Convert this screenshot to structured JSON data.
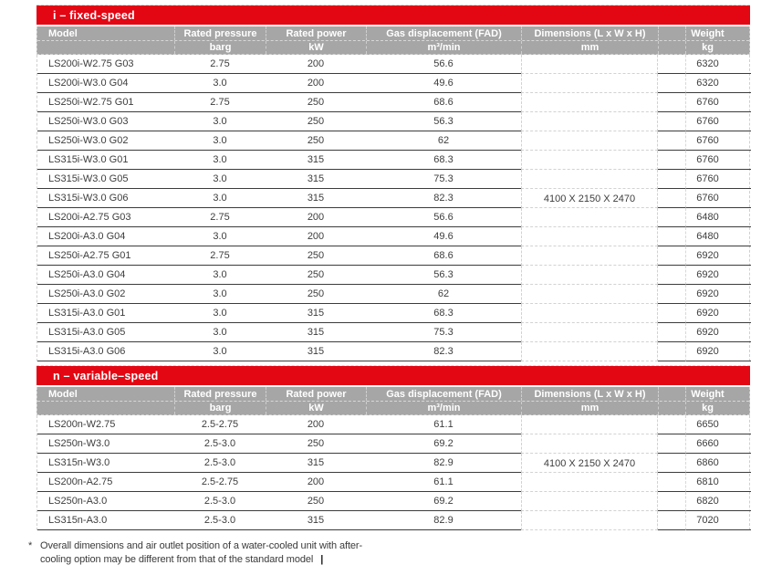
{
  "colors": {
    "accent_red": "#e30613",
    "header_gray": "#a6a6a6",
    "row_line": "#3c3c3c",
    "dashed_line": "#cfcfcf",
    "text": "#3d3d3d"
  },
  "columns": [
    {
      "key": "model",
      "label": "Model",
      "unit": ""
    },
    {
      "key": "pressure",
      "label": "Rated pressure",
      "unit": "barg"
    },
    {
      "key": "power",
      "label": "Rated power",
      "unit": "kW"
    },
    {
      "key": "fad",
      "label": "Gas displacement (FAD)",
      "unit": "m³/min"
    },
    {
      "key": "dims",
      "label": "Dimensions (L x W x H)",
      "unit": "mm"
    },
    {
      "key": "spacer",
      "label": "",
      "unit": ""
    },
    {
      "key": "weight",
      "label": "Weight",
      "unit": "kg"
    }
  ],
  "tables": [
    {
      "title": "i – fixed-speed",
      "dimensions_merged": "4100 X 2150 X 2470",
      "dimensions_row_index": 7,
      "rows": [
        {
          "model": "LS200i-W2.75 G03",
          "pressure": "2.75",
          "power": "200",
          "fad": "56.6",
          "weight": "6320"
        },
        {
          "model": "LS200i-W3.0 G04",
          "pressure": "3.0",
          "power": "200",
          "fad": "49.6",
          "weight": "6320"
        },
        {
          "model": "LS250i-W2.75 G01",
          "pressure": "2.75",
          "power": "250",
          "fad": "68.6",
          "weight": "6760"
        },
        {
          "model": "LS250i-W3.0 G03",
          "pressure": "3.0",
          "power": "250",
          "fad": "56.3",
          "weight": "6760"
        },
        {
          "model": "LS250i-W3.0 G02",
          "pressure": "3.0",
          "power": "250",
          "fad": "62",
          "weight": "6760"
        },
        {
          "model": "LS315i-W3.0 G01",
          "pressure": "3.0",
          "power": "315",
          "fad": "68.3",
          "weight": "6760"
        },
        {
          "model": "LS315i-W3.0 G05",
          "pressure": "3.0",
          "power": "315",
          "fad": "75.3",
          "weight": "6760"
        },
        {
          "model": "LS315i-W3.0 G06",
          "pressure": "3.0",
          "power": "315",
          "fad": "82.3",
          "weight": "6760"
        },
        {
          "model": "LS200i-A2.75 G03",
          "pressure": "2.75",
          "power": "200",
          "fad": "56.6",
          "weight": "6480"
        },
        {
          "model": "LS200i-A3.0 G04",
          "pressure": "3.0",
          "power": "200",
          "fad": "49.6",
          "weight": "6480"
        },
        {
          "model": "LS250i-A2.75 G01",
          "pressure": "2.75",
          "power": "250",
          "fad": "68.6",
          "weight": "6920"
        },
        {
          "model": "LS250i-A3.0 G04",
          "pressure": "3.0",
          "power": "250",
          "fad": "56.3",
          "weight": "6920"
        },
        {
          "model": "LS250i-A3.0 G02",
          "pressure": "3.0",
          "power": "250",
          "fad": "62",
          "weight": "6920"
        },
        {
          "model": "LS315i-A3.0 G01",
          "pressure": "3.0",
          "power": "315",
          "fad": "68.3",
          "weight": "6920"
        },
        {
          "model": "LS315i-A3.0 G05",
          "pressure": "3.0",
          "power": "315",
          "fad": "75.3",
          "weight": "6920"
        },
        {
          "model": "LS315i-A3.0 G06",
          "pressure": "3.0",
          "power": "315",
          "fad": "82.3",
          "weight": "6920"
        }
      ]
    },
    {
      "title": "n – variable–speed",
      "dimensions_merged": "4100 X 2150 X 2470",
      "dimensions_row_index": 2,
      "rows": [
        {
          "model": "LS200n-W2.75",
          "pressure": "2.5-2.75",
          "power": "200",
          "fad": "61.1",
          "weight": "6650"
        },
        {
          "model": "LS250n-W3.0",
          "pressure": "2.5-3.0",
          "power": "250",
          "fad": "69.2",
          "weight": "6660"
        },
        {
          "model": "LS315n-W3.0",
          "pressure": "2.5-3.0",
          "power": "315",
          "fad": "82.9",
          "weight": "6860"
        },
        {
          "model": "LS200n-A2.75",
          "pressure": "2.5-2.75",
          "power": "200",
          "fad": "61.1",
          "weight": "6810"
        },
        {
          "model": "LS250n-A3.0",
          "pressure": "2.5-3.0",
          "power": "250",
          "fad": "69.2",
          "weight": "6820"
        },
        {
          "model": "LS315n-A3.0",
          "pressure": "2.5-3.0",
          "power": "315",
          "fad": "82.9",
          "weight": "7020"
        }
      ]
    }
  ],
  "footnote": {
    "marker": "*",
    "line1": "Overall dimensions and air outlet position of a water-cooled unit with after-",
    "line2": "cooling option may be different from that of the standard model",
    "caret": "|"
  }
}
